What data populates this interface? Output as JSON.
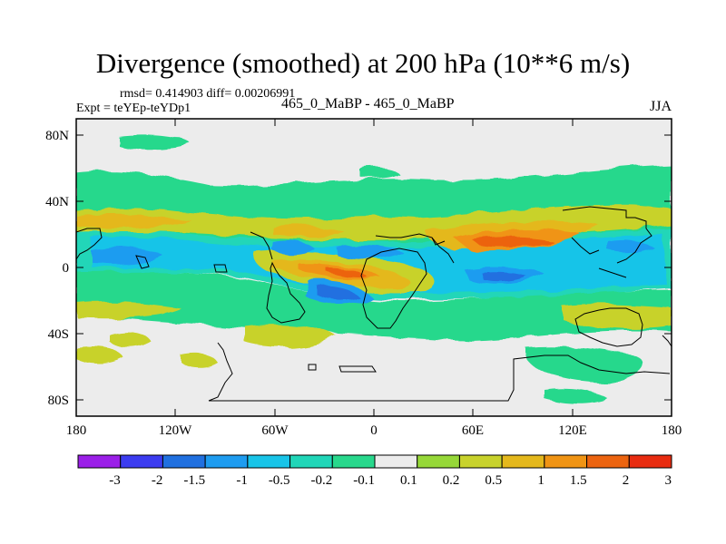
{
  "title": "Divergence (smoothed) at 200 hPa (10**6 m/s)",
  "stats": "rmsd= 0.414903 diff= 0.00206991",
  "experiment": "Expt = teYEp-teYDp1",
  "center_label": "465_0_MaBP - 465_0_MaBP",
  "season": "JJA",
  "lat_ticks": [
    "80N",
    "40N",
    "0",
    "40S",
    "80S"
  ],
  "lon_ticks": [
    "180",
    "120W",
    "60W",
    "0",
    "60E",
    "120E",
    "180"
  ],
  "colorbar": {
    "labels": [
      "-3",
      "-2",
      "-1.5",
      "-1",
      "-0.5",
      "-0.2",
      "-0.1",
      "0.1",
      "0.2",
      "0.5",
      "1",
      "1.5",
      "2",
      "3"
    ],
    "colors": [
      "#9b1fe8",
      "#3c3cf0",
      "#2070e0",
      "#1e9cf0",
      "#18c4e8",
      "#20d6b8",
      "#28d88c",
      "#ececec",
      "#96d838",
      "#c8d22c",
      "#e4b81c",
      "#f09414",
      "#ec6410",
      "#e82c10"
    ]
  }
}
